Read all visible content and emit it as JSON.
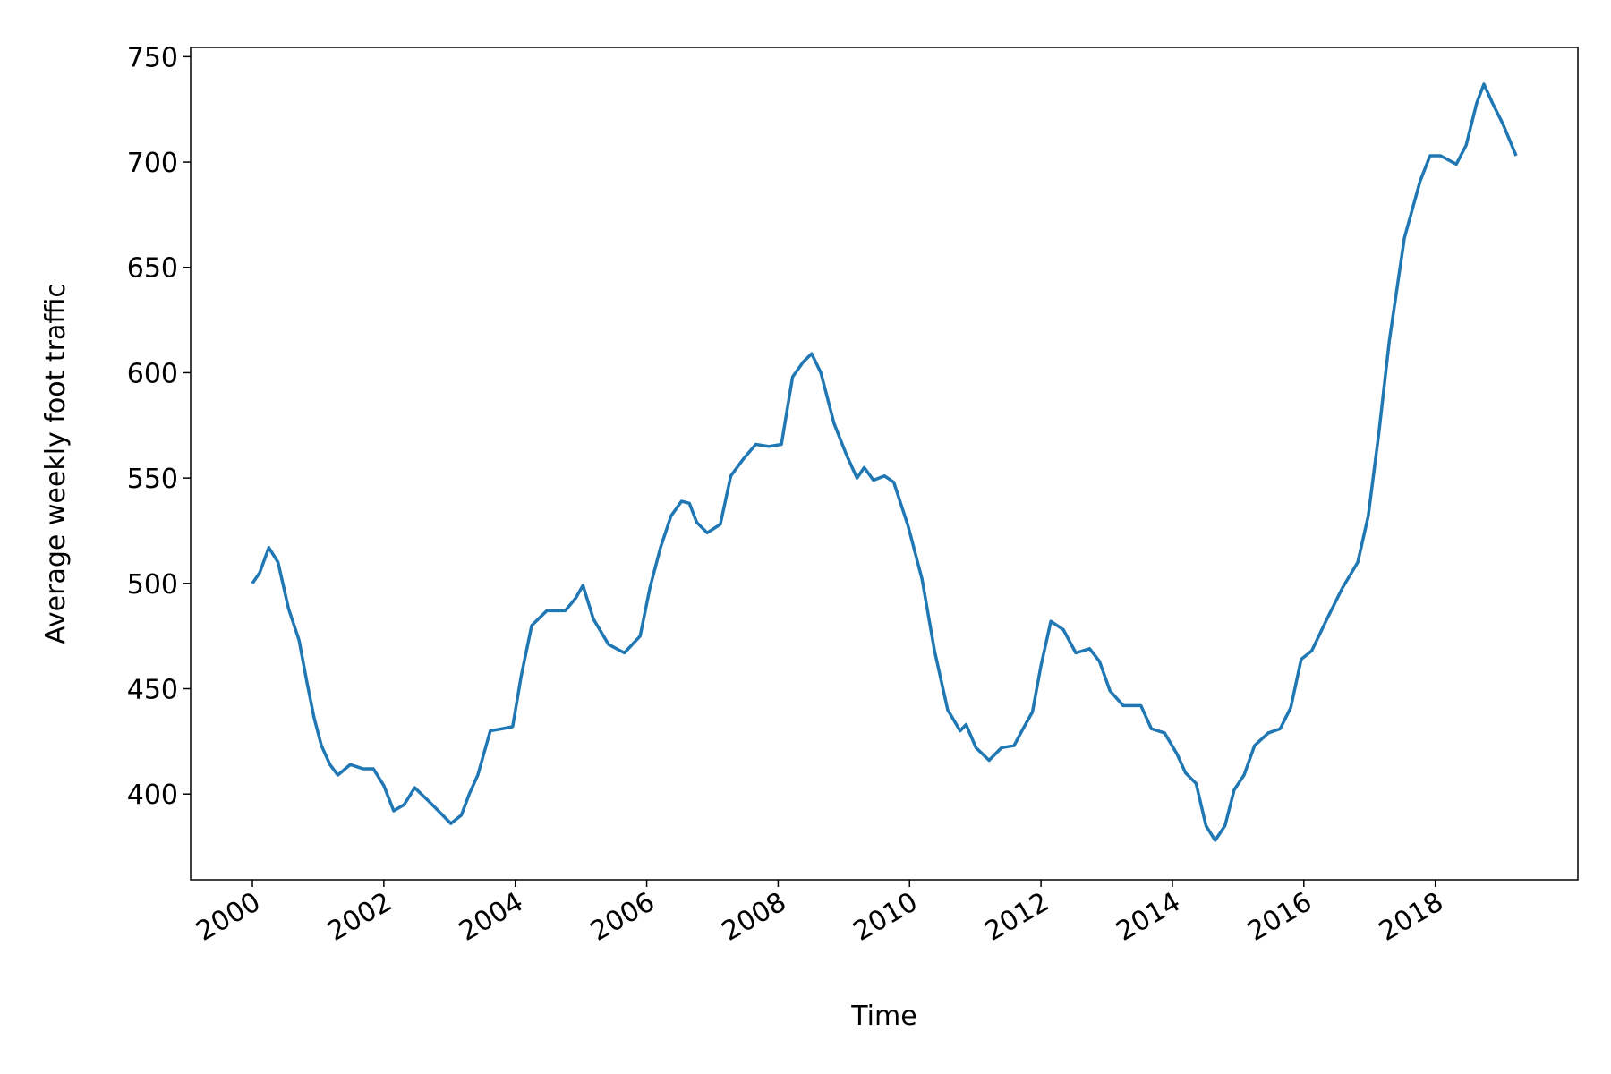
{
  "chart_data": {
    "type": "line",
    "xlabel": "Time",
    "ylabel": "Average weekly foot traffic",
    "xlim": [
      1999.06,
      2020.17
    ],
    "ylim": [
      359.3,
      754.4
    ],
    "xticks": [
      2000,
      2002,
      2004,
      2006,
      2008,
      2010,
      2012,
      2014,
      2016,
      2018
    ],
    "yticks": [
      400,
      450,
      500,
      550,
      600,
      650,
      700,
      750
    ],
    "grid": false,
    "x": [
      2000.0,
      2000.11,
      2000.25,
      2000.39,
      2000.55,
      2000.71,
      2000.83,
      2000.94,
      2001.05,
      2001.18,
      2001.3,
      2001.49,
      2001.68,
      2001.84,
      2002.0,
      2002.15,
      2002.31,
      2002.47,
      2002.67,
      2002.83,
      2003.02,
      2003.18,
      2003.3,
      2003.43,
      2003.62,
      2003.8,
      2003.96,
      2004.09,
      2004.25,
      2004.48,
      2004.76,
      2004.92,
      2005.03,
      2005.19,
      2005.42,
      2005.66,
      2005.9,
      2006.05,
      2006.21,
      2006.37,
      2006.53,
      2006.65,
      2006.76,
      2006.92,
      2007.12,
      2007.28,
      2007.47,
      2007.66,
      2007.86,
      2008.05,
      2008.22,
      2008.38,
      2008.51,
      2008.65,
      2008.85,
      2009.04,
      2009.2,
      2009.31,
      2009.45,
      2009.62,
      2009.76,
      2009.98,
      2010.19,
      2010.38,
      2010.58,
      2010.77,
      2010.86,
      2011.01,
      2011.21,
      2011.4,
      2011.59,
      2011.71,
      2011.87,
      2012.0,
      2012.15,
      2012.34,
      2012.53,
      2012.74,
      2012.89,
      2013.05,
      2013.25,
      2013.52,
      2013.68,
      2013.88,
      2014.07,
      2014.2,
      2014.36,
      2014.51,
      2014.65,
      2014.8,
      2014.94,
      2015.09,
      2015.25,
      2015.46,
      2015.64,
      2015.8,
      2015.96,
      2016.12,
      2016.35,
      2016.59,
      2016.82,
      2016.98,
      2017.14,
      2017.3,
      2017.53,
      2017.77,
      2017.92,
      2018.08,
      2018.32,
      2018.47,
      2018.63,
      2018.74,
      2018.87,
      2019.03,
      2019.23
    ],
    "series": [
      {
        "color": "#1f77b4",
        "values": [
          500,
          505,
          517,
          510,
          488,
          473,
          453,
          436,
          423,
          414,
          409,
          414,
          412,
          412,
          404,
          392,
          395,
          403,
          397,
          392,
          386,
          390,
          400,
          409,
          430,
          431,
          432,
          456,
          480,
          487,
          487,
          493,
          499,
          483,
          471,
          467,
          475,
          498,
          517,
          532,
          539,
          538,
          529,
          524,
          528,
          551,
          559,
          566,
          565,
          566,
          598,
          605,
          609,
          600,
          576,
          561,
          550,
          555,
          549,
          551,
          548,
          527,
          502,
          468,
          440,
          430,
          433,
          422,
          416,
          422,
          423,
          430,
          439,
          461,
          482,
          478,
          467,
          469,
          463,
          449,
          442,
          442,
          431,
          429,
          419,
          410,
          405,
          385,
          378,
          385,
          402,
          409,
          423,
          429,
          431,
          441,
          464,
          468,
          483,
          498,
          510,
          532,
          571,
          615,
          664,
          691,
          703,
          703,
          699,
          708,
          728,
          737,
          728,
          718,
          703
        ]
      }
    ]
  }
}
